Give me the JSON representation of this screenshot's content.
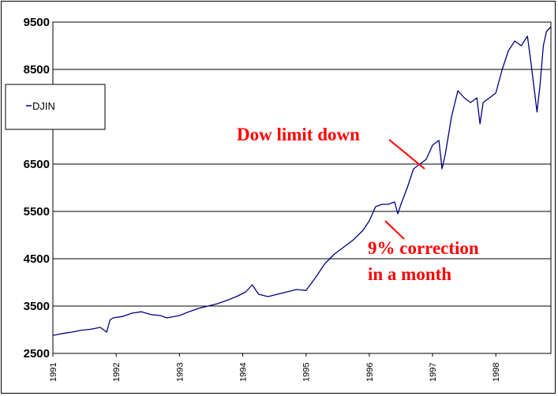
{
  "chart_data": {
    "type": "line",
    "title": "",
    "xlabel": "",
    "ylabel": "",
    "ylim": [
      2500,
      9500
    ],
    "xlim": [
      1991.0,
      1998.87
    ],
    "y_ticks": [
      "2500",
      "3500",
      "4500",
      "5500",
      "6500",
      "8500",
      "9500"
    ],
    "x_ticks": [
      "1991",
      "1992",
      "1993",
      "1994",
      "1995",
      "1996",
      "1997",
      "1998"
    ],
    "grid": true,
    "legend": {
      "placement": "upper-left",
      "entries": [
        "DJIN"
      ]
    },
    "series": [
      {
        "name": "DJIN",
        "color": "#000080",
        "x": [
          1991.0,
          1991.15,
          1991.3,
          1991.45,
          1991.6,
          1991.75,
          1991.85,
          1991.9,
          1991.95,
          1992.1,
          1992.25,
          1992.4,
          1992.55,
          1992.7,
          1992.8,
          1993.0,
          1993.15,
          1993.3,
          1993.45,
          1993.6,
          1993.75,
          1993.9,
          1994.05,
          1994.15,
          1994.25,
          1994.4,
          1994.55,
          1994.7,
          1994.85,
          1995.0,
          1995.15,
          1995.3,
          1995.45,
          1995.6,
          1995.75,
          1995.9,
          1996.0,
          1996.1,
          1996.2,
          1996.3,
          1996.4,
          1996.45,
          1996.5,
          1996.6,
          1996.7,
          1996.8,
          1996.9,
          1997.0,
          1997.1,
          1997.15,
          1997.2,
          1997.3,
          1997.4,
          1997.5,
          1997.6,
          1997.7,
          1997.75,
          1997.8,
          1997.9,
          1998.0,
          1998.1,
          1998.2,
          1998.3,
          1998.4,
          1998.5,
          1998.55,
          1998.6,
          1998.65,
          1998.7,
          1998.75,
          1998.8,
          1998.87
        ],
        "values": [
          2880,
          2920,
          2950,
          2990,
          3010,
          3050,
          2950,
          3200,
          3250,
          3280,
          3350,
          3380,
          3320,
          3300,
          3250,
          3300,
          3380,
          3450,
          3500,
          3550,
          3620,
          3700,
          3800,
          3950,
          3750,
          3700,
          3750,
          3800,
          3850,
          3830,
          4100,
          4400,
          4600,
          4750,
          4900,
          5100,
          5300,
          5600,
          5650,
          5650,
          5700,
          5450,
          5650,
          6000,
          6400,
          6500,
          6600,
          6900,
          7000,
          6400,
          6700,
          7500,
          8050,
          7900,
          7800,
          7900,
          7350,
          7800,
          7900,
          8000,
          8500,
          8900,
          9100,
          9000,
          9200,
          8700,
          8150,
          7600,
          8200,
          9000,
          9300,
          9400
        ]
      }
    ],
    "annotations": [
      {
        "text": "Dow limit down"
      },
      {
        "text": "9% correction"
      },
      {
        "text": "in a month"
      }
    ]
  }
}
